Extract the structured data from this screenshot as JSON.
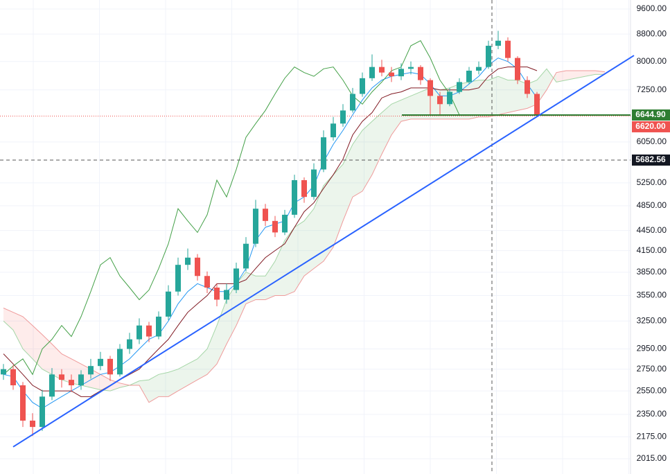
{
  "chart_data": {
    "type": "candlestick",
    "log_scale": true,
    "ylim": [
      1911,
      9905
    ],
    "yticks": [
      {
        "value": 9600,
        "label": "9600.00"
      },
      {
        "value": 8800,
        "label": "8800.00"
      },
      {
        "value": 8000,
        "label": "8000.00"
      },
      {
        "value": 7250,
        "label": "7250.00"
      },
      {
        "value": 6050,
        "label": "6050.00"
      },
      {
        "value": 5250,
        "label": "5250.00"
      },
      {
        "value": 4850,
        "label": "4850.00"
      },
      {
        "value": 4450,
        "label": "4450.00"
      },
      {
        "value": 4150,
        "label": "4150.00"
      },
      {
        "value": 3850,
        "label": "3850.00"
      },
      {
        "value": 3550,
        "label": "3550.00"
      },
      {
        "value": 3250,
        "label": "3250.00"
      },
      {
        "value": 2950,
        "label": "2950.00"
      },
      {
        "value": 2750,
        "label": "2750.00"
      },
      {
        "value": 2550,
        "label": "2550.00"
      },
      {
        "value": 2350,
        "label": "2350.00"
      },
      {
        "value": 2175,
        "label": "2175.00"
      },
      {
        "value": 2015,
        "label": "2015.00"
      }
    ],
    "grid": true,
    "up_color": "#26a69a",
    "down_color": "#ef5350",
    "open": [
      2700,
      2750,
      2600,
      2300,
      2250,
      2500,
      2700,
      2650,
      2600,
      2700,
      2780,
      2850,
      2700,
      2950,
      3050,
      3200,
      3080,
      3300,
      3600,
      3950,
      4050,
      3800,
      3650,
      3500,
      3620,
      3900,
      4250,
      4800,
      4600,
      4420,
      4700,
      5300,
      5000,
      5500,
      6150,
      6450,
      6750,
      7150,
      7550,
      7850,
      7700,
      7600,
      7800,
      7850,
      7500,
      7100,
      6900,
      7200,
      7450,
      7750,
      7850,
      8450,
      8600,
      8100,
      7500,
      7150
    ],
    "high": [
      2800,
      2790,
      2630,
      2360,
      2560,
      2760,
      2750,
      2700,
      2740,
      2850,
      2920,
      2880,
      3000,
      3120,
      3280,
      3240,
      3360,
      3680,
      4050,
      4180,
      4100,
      3860,
      3700,
      3700,
      3980,
      4350,
      4950,
      4880,
      4680,
      4780,
      5400,
      5350,
      5620,
      6300,
      6600,
      6900,
      7300,
      7700,
      8200,
      8050,
      7850,
      7950,
      8000,
      7900,
      7550,
      7200,
      7300,
      7550,
      7850,
      8000,
      8600,
      8900,
      8700,
      8150,
      7600,
      7200
    ],
    "low": [
      2650,
      2560,
      2250,
      2180,
      2220,
      2470,
      2580,
      2540,
      2560,
      2660,
      2740,
      2640,
      2680,
      2900,
      3000,
      3020,
      3050,
      3260,
      3550,
      3880,
      3740,
      3580,
      3420,
      3450,
      3580,
      3860,
      4200,
      4520,
      4350,
      4380,
      4650,
      4900,
      4950,
      5450,
      6080,
      6380,
      6700,
      7080,
      7480,
      7600,
      7450,
      7500,
      7650,
      7380,
      6650,
      6650,
      6850,
      7150,
      7400,
      7650,
      7800,
      8350,
      8000,
      7400,
      7050,
      6600
    ],
    "close": [
      2750,
      2600,
      2300,
      2250,
      2500,
      2700,
      2650,
      2600,
      2700,
      2780,
      2850,
      2700,
      2950,
      3050,
      3200,
      3080,
      3300,
      3600,
      3950,
      4050,
      3800,
      3650,
      3500,
      3620,
      3900,
      4250,
      4800,
      4600,
      4420,
      4700,
      5300,
      5000,
      5500,
      6150,
      6450,
      6750,
      7150,
      7550,
      7850,
      7700,
      7600,
      7800,
      7850,
      7500,
      7100,
      6900,
      7200,
      7450,
      7750,
      7850,
      8450,
      8600,
      8100,
      7500,
      7150,
      6645
    ],
    "lines": [
      {
        "color": "#2196f3",
        "values": [
          2700,
          2680,
          2550,
          2450,
          2400,
          2450,
          2500,
          2550,
          2600,
          2650,
          2700,
          2720,
          2780,
          2850,
          2950,
          3050,
          3100,
          3250,
          3450,
          3600,
          3700,
          3650,
          3600,
          3600,
          3700,
          3900,
          4300,
          4500,
          4550,
          4600,
          4900,
          5000,
          5200,
          5650,
          6000,
          6300,
          6650,
          7000,
          7300,
          7500,
          7600,
          7650,
          7700,
          7650,
          7400,
          7100,
          7100,
          7200,
          7400,
          7600,
          7900,
          8100,
          8000,
          7800,
          7400,
          7050
        ]
      },
      {
        "color": "#801922",
        "values": [
          2900,
          2800,
          2700,
          2600,
          2550,
          2550,
          2550,
          2550,
          2500,
          2500,
          2550,
          2600,
          2650,
          2700,
          2750,
          2850,
          2950,
          3050,
          3200,
          3350,
          3450,
          3550,
          3700,
          3700,
          3700,
          3750,
          3900,
          4050,
          4150,
          4250,
          4500,
          4750,
          4900,
          5150,
          5400,
          5700,
          6200,
          6500,
          6700,
          7050,
          7150,
          7200,
          7300,
          7300,
          7300,
          7250,
          7250,
          7250,
          7250,
          7300,
          7600,
          7800,
          7850,
          7850,
          7850,
          7750
        ]
      },
      {
        "color": "#43a047",
        "values": [
          2700,
          2780,
          2850,
          2700,
          2950,
          3050,
          3200,
          3080,
          3300,
          3600,
          3950,
          4050,
          3800,
          3650,
          3500,
          3620,
          3900,
          4250,
          4800,
          4600,
          4420,
          4700,
          5300,
          5000,
          5500,
          6150,
          6450,
          6750,
          7150,
          7550,
          7850,
          7700,
          7600,
          7800,
          7850,
          7500,
          7100,
          6900,
          7200,
          7450,
          7750,
          7850,
          8450,
          8600,
          8100,
          7500,
          7150,
          6645,
          null,
          null,
          null,
          null,
          null,
          null,
          null,
          null
        ]
      }
    ],
    "cloud": {
      "up_color": "#43a047",
      "down_color": "#f44336",
      "span_a": [
        3250,
        3150,
        2950,
        2850,
        2750,
        2700,
        2650,
        2620,
        2600,
        2580,
        2560,
        2550,
        2580,
        2600,
        2640,
        2650,
        2700,
        2720,
        2750,
        2800,
        2850,
        2950,
        3200,
        3500,
        3700,
        3850,
        3800,
        3800,
        4000,
        4300,
        4500,
        4600,
        4800,
        5200,
        5400,
        5600,
        6000,
        6300,
        6500,
        6700,
        6900,
        7000,
        7100,
        7200,
        7300,
        7250,
        7300,
        7400,
        7450,
        7500,
        7500,
        7600,
        7500,
        7500,
        7400,
        7500,
        7800,
        7450,
        7500,
        7550,
        7600,
        7650,
        7650
      ],
      "span_b": [
        3400,
        3350,
        3300,
        3200,
        3100,
        3000,
        2900,
        2850,
        2800,
        2750,
        2700,
        2650,
        2620,
        2600,
        2600,
        2450,
        2500,
        2500,
        2550,
        2600,
        2650,
        2700,
        2800,
        3000,
        3200,
        3450,
        3500,
        3500,
        3550,
        3550,
        3600,
        3800,
        3900,
        4000,
        4200,
        4600,
        5000,
        5100,
        5400,
        5800,
        6200,
        6500,
        6550,
        6550,
        6550,
        6550,
        6550,
        6550,
        6550,
        6600,
        6600,
        6650,
        6700,
        6750,
        6800,
        6900,
        7250,
        7700,
        7750,
        7750,
        7750,
        7750,
        7720
      ]
    },
    "trendline": {
      "color": "#2962ff",
      "x": [
        1,
        65
      ],
      "y": [
        2100,
        8170
      ]
    },
    "price_labels": [
      {
        "value": 6644.9,
        "label": "6644.90",
        "color": "#2e7d32"
      },
      {
        "value": 6620,
        "label": "6620.00",
        "color": "#ef5350"
      },
      {
        "value": 5682.56,
        "label": "5682.56",
        "color": "#131722"
      }
    ]
  }
}
